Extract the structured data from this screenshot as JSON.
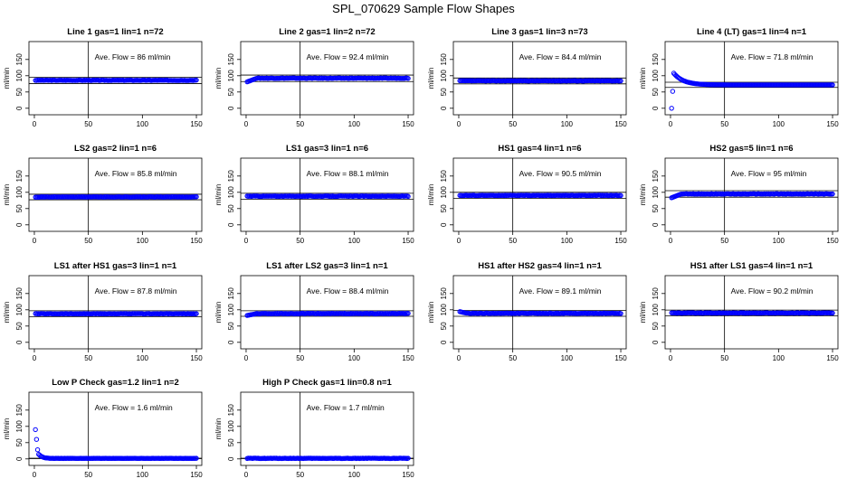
{
  "title": "SPL_070629  Sample Flow Shapes",
  "chart_data": [
    {
      "type": "scatter",
      "title": "Line 1 gas=1 lin=1 n=72",
      "annotation": "Ave. Flow =  86  ml/min",
      "ylabel": "ml/min",
      "x_ticks": [
        0,
        50,
        100,
        150
      ],
      "y_ticks": [
        0,
        50,
        100,
        150
      ],
      "ylim": [
        -20,
        205
      ],
      "xlim": [
        -5,
        155
      ],
      "vline_x": 50,
      "hline_y": [
        95,
        76
      ],
      "shape": "flat",
      "level": 86,
      "x_extent": [
        0,
        150
      ]
    },
    {
      "type": "scatter",
      "title": "Line 2 gas=1 lin=2 n=72",
      "annotation": "Ave. Flow =  92.4  ml/min",
      "ylabel": "ml/min",
      "x_ticks": [
        0,
        50,
        100,
        150
      ],
      "y_ticks": [
        0,
        50,
        100,
        150
      ],
      "ylim": [
        -20,
        205
      ],
      "xlim": [
        -5,
        155
      ],
      "vline_x": 50,
      "hline_y": [
        102,
        82
      ],
      "shape": "rise_start",
      "level": 92.4,
      "start": 80,
      "x_extent": [
        0,
        150
      ]
    },
    {
      "type": "scatter",
      "title": "Line 3 gas=1 lin=3 n=73",
      "annotation": "Ave. Flow =  84.4  ml/min",
      "ylabel": "ml/min",
      "x_ticks": [
        0,
        50,
        100,
        150
      ],
      "y_ticks": [
        0,
        50,
        100,
        150
      ],
      "ylim": [
        -20,
        205
      ],
      "xlim": [
        -5,
        155
      ],
      "vline_x": 50,
      "hline_y": [
        93,
        75
      ],
      "shape": "flat",
      "level": 84.4,
      "x_extent": [
        0,
        150
      ]
    },
    {
      "type": "scatter",
      "title": "Line 4 (LT) gas=1 lin=4 n=1",
      "annotation": "Ave. Flow =  71.8  ml/min",
      "ylabel": "ml/min",
      "x_ticks": [
        0,
        50,
        100,
        150
      ],
      "y_ticks": [
        0,
        50,
        100,
        150
      ],
      "ylim": [
        -20,
        205
      ],
      "xlim": [
        -5,
        155
      ],
      "vline_x": 50,
      "hline_y": [
        80,
        64
      ],
      "shape": "spike_decay",
      "level": 71.8,
      "x_extent": [
        0,
        150
      ]
    },
    {
      "type": "scatter",
      "title": "LS2 gas=2 lin=1 n=6",
      "annotation": "Ave. Flow =  85.8  ml/min",
      "ylabel": "ml/min",
      "x_ticks": [
        0,
        50,
        100,
        150
      ],
      "y_ticks": [
        0,
        50,
        100,
        150
      ],
      "ylim": [
        -20,
        205
      ],
      "xlim": [
        -5,
        155
      ],
      "vline_x": 50,
      "hline_y": [
        94,
        77
      ],
      "shape": "flat",
      "level": 85.8,
      "x_extent": [
        0,
        150
      ]
    },
    {
      "type": "scatter",
      "title": "LS1 gas=3 lin=1 n=6",
      "annotation": "Ave. Flow =  88.1  ml/min",
      "ylabel": "ml/min",
      "x_ticks": [
        0,
        50,
        100,
        150
      ],
      "y_ticks": [
        0,
        50,
        100,
        150
      ],
      "ylim": [
        -20,
        205
      ],
      "xlim": [
        -5,
        155
      ],
      "vline_x": 50,
      "hline_y": [
        97,
        79
      ],
      "shape": "flat",
      "level": 88.1,
      "x_extent": [
        0,
        150
      ]
    },
    {
      "type": "scatter",
      "title": "HS1 gas=4 lin=1 n=6",
      "annotation": "Ave. Flow =  90.5  ml/min",
      "ylabel": "ml/min",
      "x_ticks": [
        0,
        50,
        100,
        150
      ],
      "y_ticks": [
        0,
        50,
        100,
        150
      ],
      "ylim": [
        -20,
        205
      ],
      "xlim": [
        -5,
        155
      ],
      "vline_x": 50,
      "hline_y": [
        100,
        81
      ],
      "shape": "flat",
      "level": 90.5,
      "x_extent": [
        0,
        150
      ]
    },
    {
      "type": "scatter",
      "title": "HS2 gas=5 lin=1 n=6",
      "annotation": "Ave. Flow =  95  ml/min",
      "ylabel": "ml/min",
      "x_ticks": [
        0,
        50,
        100,
        150
      ],
      "y_ticks": [
        0,
        50,
        100,
        150
      ],
      "ylim": [
        -20,
        205
      ],
      "xlim": [
        -5,
        155
      ],
      "vline_x": 50,
      "hline_y": [
        105,
        85
      ],
      "shape": "rise_start",
      "level": 95,
      "start": 82,
      "x_extent": [
        0,
        150
      ]
    },
    {
      "type": "scatter",
      "title": "LS1 after HS1 gas=3 lin=1 n=1",
      "annotation": "Ave. Flow =  87.8  ml/min",
      "ylabel": "ml/min",
      "x_ticks": [
        0,
        50,
        100,
        150
      ],
      "y_ticks": [
        0,
        50,
        100,
        150
      ],
      "ylim": [
        -20,
        205
      ],
      "xlim": [
        -5,
        155
      ],
      "vline_x": 50,
      "hline_y": [
        97,
        79
      ],
      "shape": "flat",
      "level": 87.8,
      "x_extent": [
        0,
        150
      ]
    },
    {
      "type": "scatter",
      "title": "LS1 after LS2 gas=3 lin=1 n=1",
      "annotation": "Ave. Flow =  88.4  ml/min",
      "ylabel": "ml/min",
      "x_ticks": [
        0,
        50,
        100,
        150
      ],
      "y_ticks": [
        0,
        50,
        100,
        150
      ],
      "ylim": [
        -20,
        205
      ],
      "xlim": [
        -5,
        155
      ],
      "vline_x": 50,
      "hline_y": [
        97,
        80
      ],
      "shape": "rise_start",
      "level": 88.4,
      "start": 82,
      "x_extent": [
        0,
        150
      ]
    },
    {
      "type": "scatter",
      "title": "HS1 after HS2 gas=4 lin=1 n=1",
      "annotation": "Ave. Flow =  89.1  ml/min",
      "ylabel": "ml/min",
      "x_ticks": [
        0,
        50,
        100,
        150
      ],
      "y_ticks": [
        0,
        50,
        100,
        150
      ],
      "ylim": [
        -20,
        205
      ],
      "xlim": [
        -5,
        155
      ],
      "vline_x": 50,
      "hline_y": [
        98,
        80
      ],
      "shape": "drop_start",
      "level": 89.1,
      "start": 95,
      "x_extent": [
        0,
        150
      ]
    },
    {
      "type": "scatter",
      "title": "HS1 after LS1 gas=4 lin=1 n=1",
      "annotation": "Ave. Flow =  90.2  ml/min",
      "ylabel": "ml/min",
      "x_ticks": [
        0,
        50,
        100,
        150
      ],
      "y_ticks": [
        0,
        50,
        100,
        150
      ],
      "ylim": [
        -20,
        205
      ],
      "xlim": [
        -5,
        155
      ],
      "vline_x": 50,
      "hline_y": [
        99,
        81
      ],
      "shape": "flat",
      "level": 90.2,
      "x_extent": [
        0,
        150
      ]
    },
    {
      "type": "scatter",
      "title": "Low P Check gas=1.2 lin=1 n=2",
      "annotation": "Ave. Flow =  1.6  ml/min",
      "ylabel": "ml/min",
      "x_ticks": [
        0,
        50,
        100,
        150
      ],
      "y_ticks": [
        0,
        50,
        100,
        150
      ],
      "ylim": [
        -20,
        205
      ],
      "xlim": [
        -5,
        155
      ],
      "vline_x": 50,
      "hline_y": [
        2,
        1
      ],
      "shape": "low_spike",
      "level": 1.6,
      "x_extent": [
        0,
        150
      ]
    },
    {
      "type": "scatter",
      "title": "High P Check gas=1 lin=0.8 n=1",
      "annotation": "Ave. Flow =  1.7  ml/min",
      "ylabel": "ml/min",
      "x_ticks": [
        0,
        50,
        100,
        150
      ],
      "y_ticks": [
        0,
        50,
        100,
        150
      ],
      "ylim": [
        -20,
        205
      ],
      "xlim": [
        -5,
        155
      ],
      "vline_x": 50,
      "hline_y": [
        2,
        1
      ],
      "shape": "flat",
      "level": 1.7,
      "x_extent": [
        0,
        150
      ]
    }
  ],
  "colors": {
    "points": "#0000ff",
    "axes": "#000000"
  }
}
